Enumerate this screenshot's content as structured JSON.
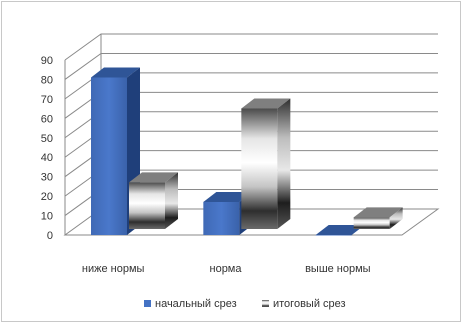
{
  "chart_data": {
    "type": "bar",
    "title": "",
    "xlabel": "",
    "ylabel": "",
    "categories": [
      "ниже нормы",
      "норма",
      "выше нормы"
    ],
    "series": [
      {
        "name": "начальный срез",
        "values": [
          81,
          17,
          0
        ],
        "color": "#4472c4"
      },
      {
        "name": "итоговый срез",
        "values": [
          24,
          62,
          6
        ],
        "color": "#9a9a9a"
      }
    ],
    "ylim": [
      0,
      90
    ],
    "yticks": [
      0,
      10,
      20,
      30,
      40,
      50,
      60,
      70,
      80,
      90
    ],
    "grid": true,
    "legend": "bottom"
  }
}
